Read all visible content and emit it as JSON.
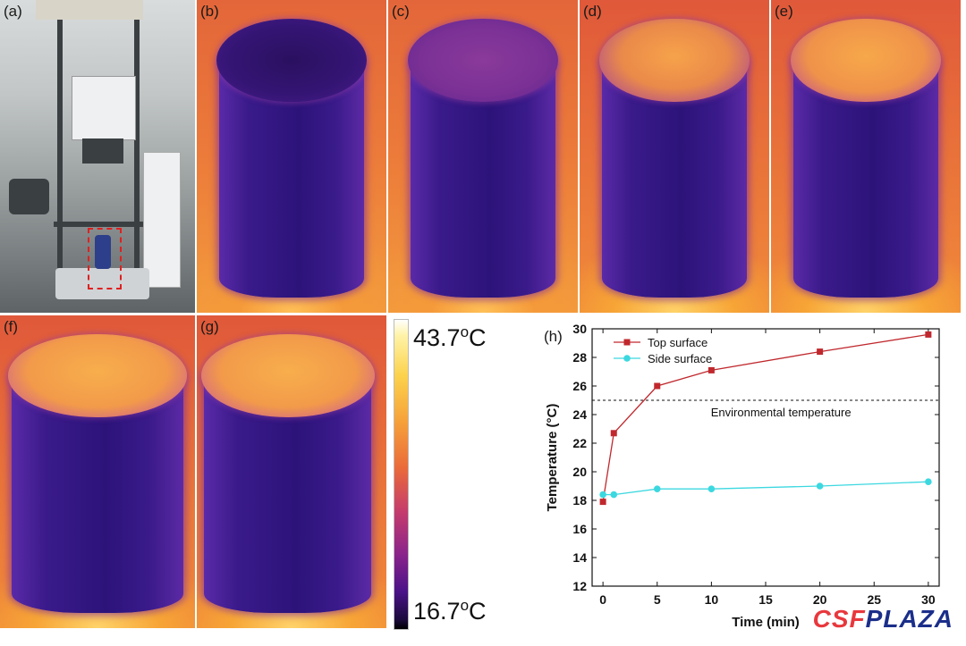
{
  "panels": {
    "a": {
      "label": "(a)",
      "kind": "photo",
      "caption": ""
    },
    "b": {
      "label": "(b)",
      "kind": "thermal"
    },
    "c": {
      "label": "(c)",
      "kind": "thermal"
    },
    "d": {
      "label": "(d)",
      "kind": "thermal"
    },
    "e": {
      "label": "(e)",
      "kind": "thermal"
    },
    "f": {
      "label": "(f)",
      "kind": "thermal"
    },
    "g": {
      "label": "(g)",
      "kind": "thermal"
    }
  },
  "colorbar": {
    "max_label": "43.7",
    "min_label": "16.7",
    "unit": "°C",
    "max_sup": "o",
    "min_sup": "o",
    "max_unit_letter": "C",
    "min_unit_letter": "C"
  },
  "watermark": {
    "part1": "CSF",
    "part2": "PLAZA"
  },
  "chart_data": {
    "type": "line",
    "panel_label": "(h)",
    "title": "",
    "xlabel": "Time (min)",
    "ylabel": "Temperature (°C)",
    "xlim": [
      -1,
      31
    ],
    "ylim": [
      12,
      30
    ],
    "xticks": [
      0,
      5,
      10,
      15,
      20,
      25,
      30
    ],
    "yticks": [
      12,
      14,
      16,
      18,
      20,
      22,
      24,
      26,
      28,
      30
    ],
    "legend_position": "top-left",
    "series": [
      {
        "name": "Top surface",
        "color": "#c0282d",
        "marker": "square",
        "x": [
          0,
          1,
          5,
          10,
          20,
          30
        ],
        "y": [
          17.9,
          22.7,
          26.0,
          27.1,
          28.4,
          29.6
        ]
      },
      {
        "name": "Side surface",
        "color": "#3cd8e0",
        "marker": "circle",
        "x": [
          0,
          1,
          5,
          10,
          20,
          30
        ],
        "y": [
          18.4,
          18.4,
          18.8,
          18.8,
          19.0,
          19.3
        ]
      }
    ],
    "reference_line": {
      "y": 25,
      "label": "Environmental temperature",
      "style": "dashed"
    }
  }
}
